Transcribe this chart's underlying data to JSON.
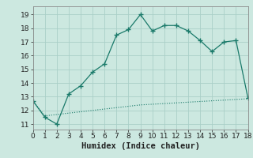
{
  "title": "",
  "xlabel": "Humidex (Indice chaleur)",
  "background_color": "#cce8e0",
  "line_color": "#1a7a6a",
  "grid_color": "#aacfc8",
  "line1_x": [
    0,
    1,
    2,
    3,
    4,
    5,
    6,
    7,
    8,
    9,
    10,
    11,
    12,
    13,
    14,
    15,
    16,
    17,
    18
  ],
  "line1_y": [
    12.7,
    11.5,
    11.0,
    13.2,
    13.8,
    14.8,
    15.4,
    17.5,
    17.9,
    19.0,
    17.8,
    18.2,
    18.2,
    17.8,
    17.1,
    16.3,
    17.0,
    17.1,
    12.9
  ],
  "line2_x": [
    0,
    1,
    2,
    3,
    4,
    5,
    6,
    7,
    8,
    9,
    10,
    11,
    12,
    13,
    14,
    15,
    16,
    17,
    18
  ],
  "line2_y": [
    12.7,
    11.6,
    11.7,
    11.8,
    11.9,
    12.0,
    12.1,
    12.2,
    12.3,
    12.4,
    12.45,
    12.5,
    12.55,
    12.6,
    12.65,
    12.7,
    12.75,
    12.8,
    12.85
  ],
  "xlim": [
    0,
    18
  ],
  "ylim": [
    10.6,
    19.6
  ],
  "xticks": [
    0,
    1,
    2,
    3,
    4,
    5,
    6,
    7,
    8,
    9,
    10,
    11,
    12,
    13,
    14,
    15,
    16,
    17,
    18
  ],
  "yticks": [
    11,
    12,
    13,
    14,
    15,
    16,
    17,
    18,
    19
  ],
  "xlabel_fontsize": 7.5,
  "tick_fontsize": 6.5
}
